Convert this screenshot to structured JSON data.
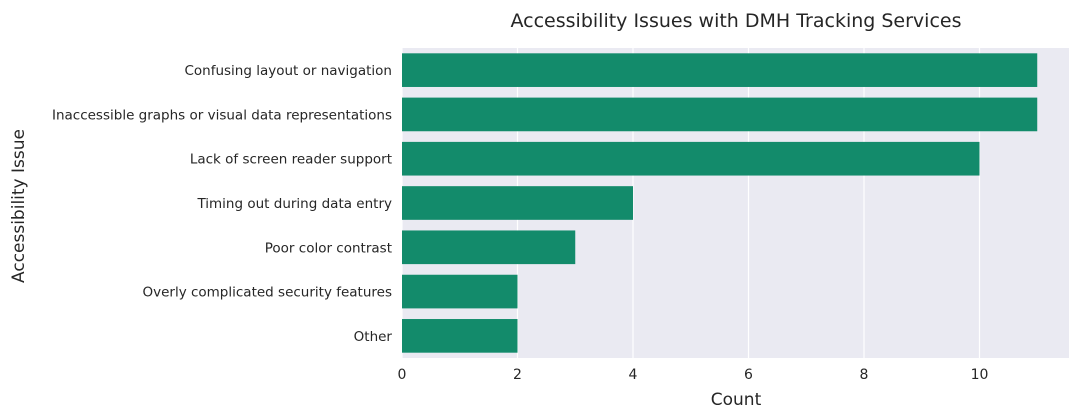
{
  "chart_data": {
    "type": "bar",
    "orientation": "horizontal",
    "title": "Accessibility Issues with DMH Tracking Services",
    "xlabel": "Count",
    "ylabel": "Accessibility Issue",
    "categories": [
      "Confusing layout or navigation",
      "Inaccessible graphs or visual data representations",
      "Lack of screen reader support",
      "Timing out during data entry",
      "Poor color contrast",
      "Overly complicated security features",
      "Other"
    ],
    "values": [
      11,
      11,
      10,
      4,
      3,
      2,
      2
    ],
    "xlim": [
      0,
      11.55
    ],
    "xticks": [
      0,
      2,
      4,
      6,
      8,
      10
    ],
    "grid": true,
    "colors": {
      "bar": "#138b6b",
      "background": "#eaeaf2",
      "grid": "#ffffff",
      "text": "#262626"
    }
  }
}
